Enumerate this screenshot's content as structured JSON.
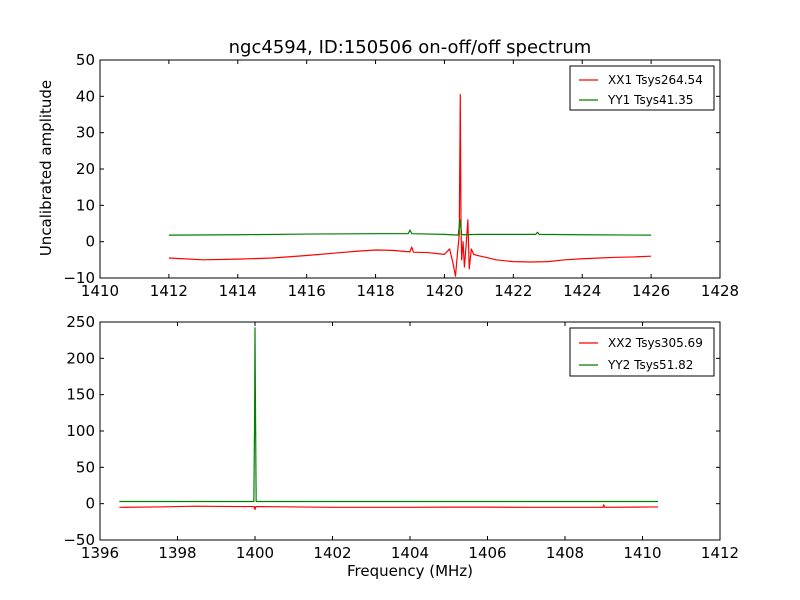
{
  "chart_data": [
    {
      "type": "line",
      "title": "ngc4594, ID:150506 on-off/off spectrum",
      "xlabel": "",
      "ylabel": "Uncalibrated amplitude",
      "xlim": [
        1410,
        1428
      ],
      "ylim": [
        -10,
        50
      ],
      "xticks": [
        1410,
        1412,
        1414,
        1416,
        1418,
        1420,
        1422,
        1424,
        1426,
        1428
      ],
      "yticks": [
        -10,
        0,
        10,
        20,
        30,
        40,
        50
      ],
      "legend_position": "top-right",
      "series": [
        {
          "name": "XX1 Tsys264.54",
          "color": "#ff0000",
          "x": [
            1412.0,
            1413.0,
            1414.0,
            1415.0,
            1416.0,
            1417.0,
            1417.5,
            1418.0,
            1418.5,
            1419.0,
            1419.05,
            1419.1,
            1419.5,
            1420.0,
            1420.15,
            1420.25,
            1420.32,
            1420.38,
            1420.43,
            1420.46,
            1420.48,
            1420.5,
            1420.54,
            1420.58,
            1420.63,
            1420.68,
            1420.72,
            1420.78,
            1420.85,
            1420.95,
            1421.2,
            1421.5,
            1422.0,
            1422.5,
            1423.0,
            1423.5,
            1424.0,
            1424.5,
            1425.0,
            1425.5,
            1426.0
          ],
          "y": [
            -4.5,
            -5.0,
            -4.8,
            -4.5,
            -3.8,
            -3.0,
            -2.6,
            -2.3,
            -2.4,
            -2.8,
            -1.5,
            -2.9,
            -3.0,
            -3.5,
            -2.0,
            -6.0,
            -9.5,
            -3.0,
            2.0,
            40.5,
            5.0,
            -5.0,
            0.0,
            -7.0,
            -1.0,
            6.0,
            -7.5,
            -2.0,
            -3.5,
            -3.8,
            -4.3,
            -5.0,
            -5.5,
            -5.6,
            -5.5,
            -5.0,
            -4.7,
            -4.5,
            -4.3,
            -4.2,
            -4.0
          ]
        },
        {
          "name": "YY1 Tsys41.35",
          "color": "#008000",
          "x": [
            1412.0,
            1414.0,
            1416.0,
            1418.0,
            1418.95,
            1419.0,
            1419.05,
            1420.0,
            1420.4,
            1420.45,
            1420.5,
            1420.55,
            1421.0,
            1422.0,
            1422.65,
            1422.7,
            1422.75,
            1424.0,
            1426.0
          ],
          "y": [
            1.8,
            1.9,
            2.1,
            2.2,
            2.2,
            3.2,
            2.2,
            2.0,
            1.8,
            6.0,
            2.0,
            1.9,
            2.0,
            2.0,
            2.0,
            2.6,
            2.0,
            1.9,
            1.8
          ]
        }
      ]
    },
    {
      "type": "line",
      "title": "",
      "xlabel": "Frequency (MHz)",
      "ylabel": "",
      "xlim": [
        1396,
        1412
      ],
      "ylim": [
        -50,
        250
      ],
      "xticks": [
        1396,
        1398,
        1400,
        1402,
        1404,
        1406,
        1408,
        1410,
        1412
      ],
      "yticks": [
        -50,
        0,
        50,
        100,
        150,
        200,
        250
      ],
      "legend_position": "top-right",
      "series": [
        {
          "name": "XX2 Tsys305.69",
          "color": "#ff0000",
          "x": [
            1396.5,
            1397.5,
            1398.5,
            1399.5,
            1399.98,
            1400.0,
            1400.02,
            1401.0,
            1402.0,
            1403.0,
            1404.0,
            1405.0,
            1406.0,
            1407.0,
            1408.0,
            1408.98,
            1409.0,
            1409.02,
            1410.4
          ],
          "y": [
            -5.0,
            -4.5,
            -3.5,
            -4.0,
            -4.0,
            -8.0,
            -4.0,
            -4.5,
            -5.0,
            -5.0,
            -5.0,
            -4.8,
            -4.8,
            -5.0,
            -5.0,
            -5.0,
            -1.5,
            -5.0,
            -4.5
          ]
        },
        {
          "name": "YY2 Tsys51.82",
          "color": "#008000",
          "x": [
            1396.5,
            1398.0,
            1399.9,
            1399.97,
            1399.99,
            1400.0,
            1400.01,
            1400.03,
            1400.1,
            1402.0,
            1404.0,
            1406.0,
            1408.0,
            1410.4
          ],
          "y": [
            3.0,
            3.0,
            3.0,
            3.0,
            120.0,
            242.0,
            150.0,
            3.0,
            3.0,
            3.0,
            3.0,
            3.0,
            3.0,
            3.0
          ]
        }
      ]
    }
  ]
}
